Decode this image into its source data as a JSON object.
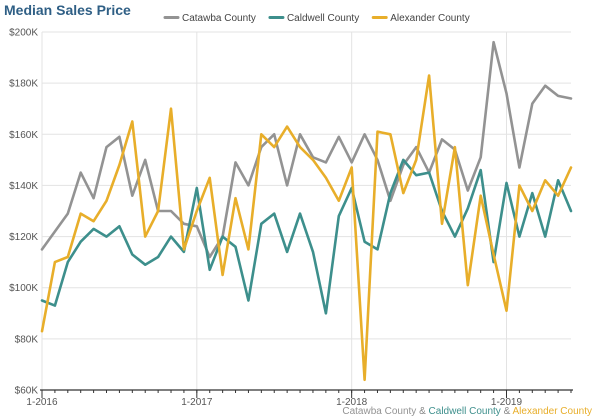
{
  "chart_data": {
    "type": "line",
    "title": "Median Sales Price",
    "xlabel": "",
    "ylabel": "",
    "ylim": [
      60000,
      200000
    ],
    "ytick_values": [
      60000,
      80000,
      100000,
      120000,
      140000,
      160000,
      180000,
      200000
    ],
    "ytick_labels": [
      "$60K",
      "$80K",
      "$100K",
      "$120K",
      "$140K",
      "$160K",
      "$180K",
      "$200K"
    ],
    "xtick_labels": [
      "1-2016",
      "1-2017",
      "1-2018",
      "1-2019"
    ],
    "xtick_months": [
      "2016-01",
      "2017-01",
      "2018-01",
      "2019-01"
    ],
    "x": [
      "2016-01",
      "2016-02",
      "2016-03",
      "2016-04",
      "2016-05",
      "2016-06",
      "2016-07",
      "2016-08",
      "2016-09",
      "2016-10",
      "2016-11",
      "2016-12",
      "2017-01",
      "2017-02",
      "2017-03",
      "2017-04",
      "2017-05",
      "2017-06",
      "2017-07",
      "2017-08",
      "2017-09",
      "2017-10",
      "2017-11",
      "2017-12",
      "2018-01",
      "2018-02",
      "2018-03",
      "2018-04",
      "2018-05",
      "2018-06",
      "2018-07",
      "2018-08",
      "2018-09",
      "2018-10",
      "2018-11",
      "2018-12",
      "2019-01",
      "2019-02",
      "2019-03",
      "2019-04",
      "2019-05",
      "2019-06"
    ],
    "grid": true,
    "legend_position": "top",
    "series": [
      {
        "name": "Catawba County",
        "color": "#939393",
        "values": [
          115000,
          122000,
          129000,
          145000,
          135000,
          155000,
          159000,
          136000,
          150000,
          130000,
          130000,
          125000,
          124000,
          112000,
          120000,
          149000,
          140000,
          155000,
          160000,
          140000,
          160000,
          151000,
          149000,
          159000,
          149000,
          160000,
          150000,
          134000,
          148000,
          155000,
          145000,
          158000,
          154000,
          138000,
          151000,
          196000,
          176000,
          147000,
          172000,
          179000,
          175000,
          174000
        ]
      },
      {
        "name": "Caldwell County",
        "color": "#3d8f8c",
        "values": [
          95000,
          93000,
          110000,
          118000,
          123000,
          120000,
          124000,
          113000,
          109000,
          112000,
          120000,
          114000,
          139000,
          107000,
          120000,
          116000,
          95000,
          125000,
          129000,
          114000,
          129000,
          114000,
          90000,
          128000,
          139000,
          118000,
          115000,
          137000,
          150000,
          144000,
          145000,
          130000,
          120000,
          131000,
          146000,
          110000,
          141000,
          120000,
          137000,
          120000,
          142000,
          130000
        ]
      },
      {
        "name": "Alexander County",
        "color": "#e8ae2a",
        "values": [
          83000,
          110000,
          112000,
          129000,
          126000,
          134000,
          148000,
          165000,
          120000,
          130000,
          170000,
          115000,
          130000,
          143000,
          105000,
          135000,
          115000,
          160000,
          155000,
          163000,
          155000,
          150000,
          143000,
          134000,
          147000,
          64000,
          161000,
          160000,
          137000,
          150000,
          183000,
          125000,
          155000,
          101000,
          136000,
          113000,
          91000,
          140000,
          130000,
          142000,
          136000,
          147000
        ]
      }
    ]
  },
  "caption": {
    "part1": "Catawba County",
    "sep1": " & ",
    "part2": "Caldwell County",
    "sep2": " & ",
    "part3": "Alexander County"
  },
  "colors": {
    "title": "#2f5f85",
    "grid": "#e3e3e3",
    "axis": "#333333",
    "tick_text": "#555555"
  }
}
